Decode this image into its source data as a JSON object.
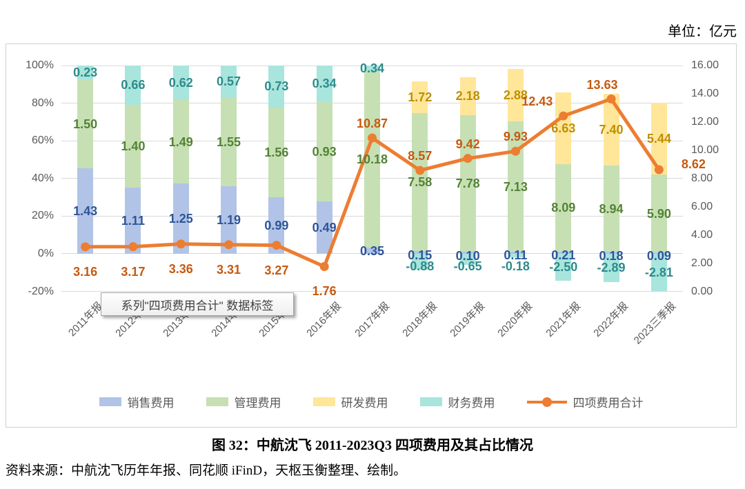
{
  "unit_label": "单位：亿元",
  "tooltip_text": "系列\"四项费用合计\" 数据标签",
  "caption": {
    "title": "图 32：中航沈飞 2011-2023Q3 四项费用及其占比情况",
    "source": "资料来源：中航沈飞历年年报、同花顺 iFinD，天枢玉衡整理、绘制。"
  },
  "chart_data": {
    "type": "bar",
    "subtype": "100-percent-stacked-bars-with-line-on-secondary-axis",
    "categories": [
      "2011年报",
      "2012年报",
      "2013年报",
      "2014年报",
      "2015年报",
      "2016年报",
      "2017年报",
      "2018年报",
      "2019年报",
      "2020年报",
      "2021年报",
      "2022年报",
      "2023三季报"
    ],
    "series": [
      {
        "name": "销售费用",
        "color": "#B1C4E7",
        "label_color": "#2F5597",
        "values": [
          1.43,
          1.11,
          1.25,
          1.19,
          0.99,
          0.49,
          0.35,
          0.15,
          0.1,
          0.11,
          0.21,
          0.18,
          0.09
        ]
      },
      {
        "name": "管理费用",
        "color": "#C6E0B4",
        "label_color": "#548235",
        "values": [
          1.5,
          1.4,
          1.49,
          1.55,
          1.56,
          0.93,
          10.18,
          7.58,
          7.78,
          7.13,
          8.09,
          8.94,
          5.9
        ]
      },
      {
        "name": "研发费用",
        "color": "#FFE699",
        "label_color": "#BF8F00",
        "values": [
          null,
          null,
          null,
          null,
          null,
          null,
          null,
          1.72,
          2.18,
          2.88,
          6.63,
          7.4,
          5.44
        ]
      },
      {
        "name": "财务费用",
        "color": "#A7E5DD",
        "label_color": "#2E8B8B",
        "values": [
          0.23,
          0.66,
          0.62,
          0.57,
          0.73,
          0.34,
          0.34,
          -0.88,
          -0.65,
          -0.18,
          -2.5,
          -2.89,
          -2.81
        ]
      }
    ],
    "line_series": {
      "name": "四项费用合计",
      "axis": "right",
      "color": "#ED7D31",
      "label_color": "#C55A11",
      "values": [
        3.16,
        3.17,
        3.36,
        3.31,
        3.27,
        1.76,
        10.87,
        8.57,
        9.42,
        9.93,
        12.43,
        13.63,
        8.62
      ]
    },
    "left_axis": {
      "min": -20,
      "max": 100,
      "step": 20,
      "format": "percent",
      "ticks": [
        "100%",
        "80%",
        "60%",
        "40%",
        "20%",
        "0%",
        "-20%"
      ]
    },
    "right_axis": {
      "min": 0,
      "max": 16,
      "step": 2,
      "ticks": [
        "16.00",
        "14.00",
        "12.00",
        "10.00",
        "8.00",
        "6.00",
        "4.00",
        "2.00",
        "0.00"
      ]
    },
    "legend_position": "bottom",
    "grid": true
  }
}
